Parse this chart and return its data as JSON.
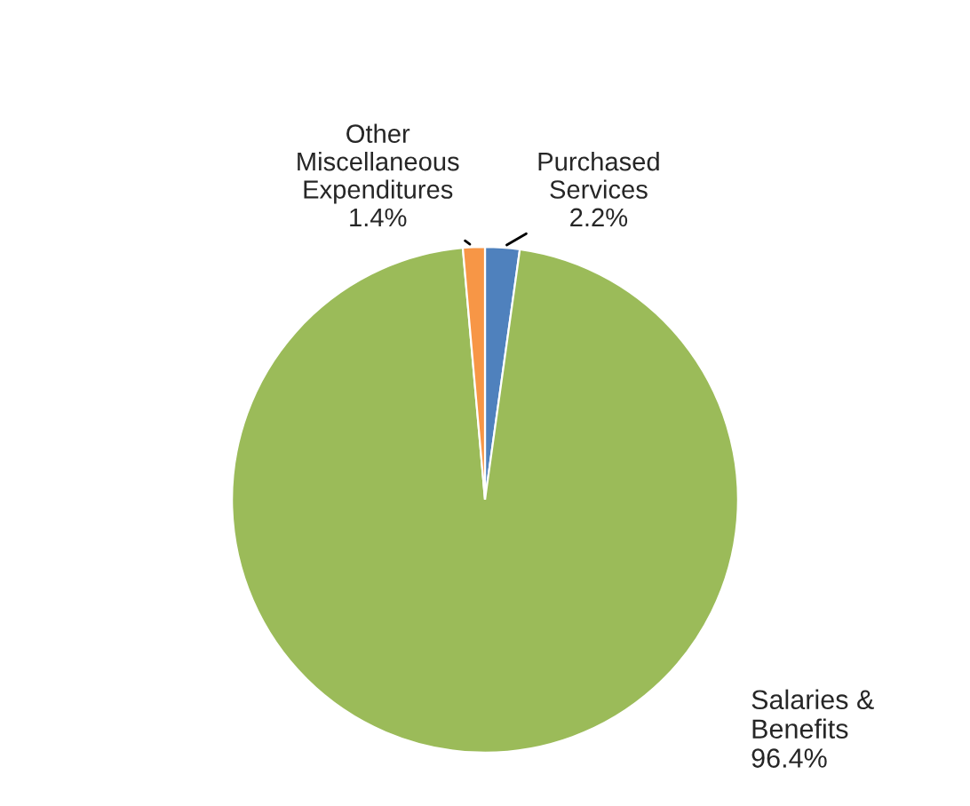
{
  "chart_data": {
    "type": "pie",
    "categories": [
      "Purchased Services",
      "Salaries & Benefits",
      "Other Miscellaneous Expenditures"
    ],
    "values": [
      2.2,
      96.4,
      1.4
    ],
    "value_labels": [
      "2.2%",
      "96.4%",
      "1.4%"
    ],
    "colors": [
      "#4f81bd",
      "#9bbb59",
      "#f79646"
    ],
    "legend": false
  }
}
